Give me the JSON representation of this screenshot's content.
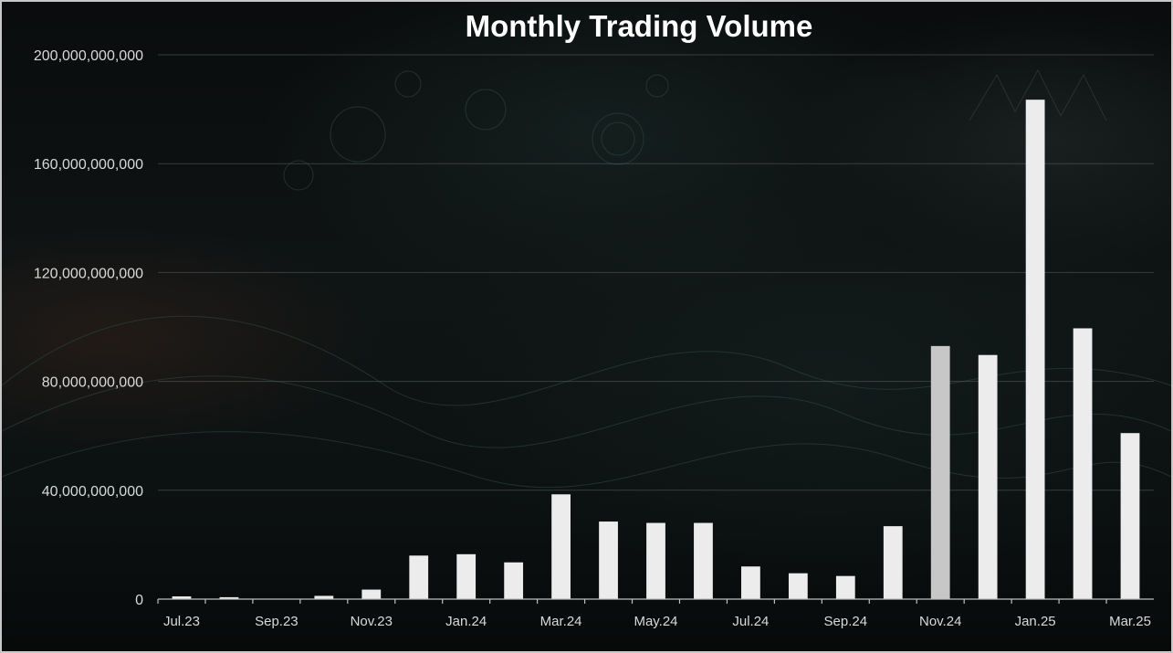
{
  "chart_data": {
    "type": "bar",
    "title": "Monthly Trading Volume",
    "xlabel": "",
    "ylabel": "",
    "ylim": [
      0,
      200000000000
    ],
    "yticks": [
      0,
      40000000000,
      80000000000,
      120000000000,
      160000000000,
      200000000000
    ],
    "ytick_labels": [
      "0",
      "40,000,000,000",
      "80,000,000,000",
      "120,000,000,000",
      "160,000,000,000",
      "200,000,000,000"
    ],
    "categories": [
      "Jul.23",
      "Aug.23",
      "Sep.23",
      "Oct.23",
      "Nov.23",
      "Dec.23",
      "Jan.24",
      "Feb.24",
      "Mar.24",
      "Apr.24",
      "May.24",
      "Jun.24",
      "Jul.24",
      "Aug.24",
      "Sep.24",
      "Oct.24",
      "Nov.24",
      "Dec.24",
      "Jan.25",
      "Feb.25",
      "Mar.25"
    ],
    "xtick_labels": [
      "Jul.23",
      "Sep.23",
      "Nov.23",
      "Jan.24",
      "Mar.24",
      "May.24",
      "Jul.24",
      "Sep.24",
      "Nov.24",
      "Jan.25",
      "Mar.25"
    ],
    "values": [
      1000000000,
      700000000,
      0,
      1200000000,
      3500000000,
      16000000000,
      16500000000,
      13500000000,
      38500000000,
      28500000000,
      28000000000,
      28000000000,
      12000000000,
      9500000000,
      8500000000,
      26800000000,
      93000000000,
      89700000000,
      183500000000,
      99500000000,
      61000000000
    ],
    "grid": true,
    "bar_color": "#ececec",
    "highlight_color": "#c7c7c7",
    "legend": "none"
  }
}
